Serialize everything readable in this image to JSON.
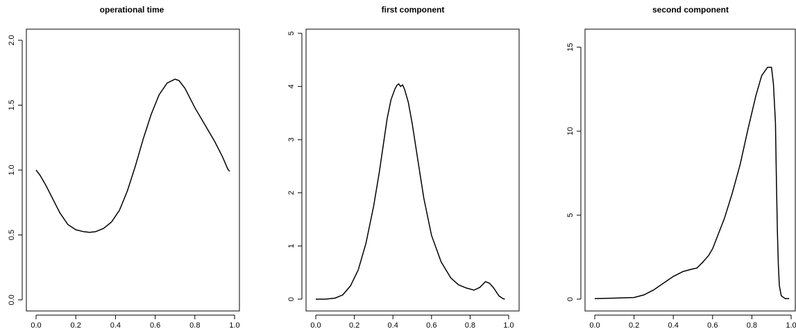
{
  "chart_data": [
    {
      "type": "line",
      "title": "operational time",
      "xlabel": "",
      "ylabel": "",
      "xlim": [
        0,
        1
      ],
      "ylim": [
        0,
        2
      ],
      "xticks": [
        "0.0",
        "0.2",
        "0.4",
        "0.6",
        "0.8",
        "1.0"
      ],
      "yticks": [
        "0.0",
        "0.5",
        "1.0",
        "1.5",
        "2.0"
      ],
      "grid": false,
      "series": [
        {
          "x": [
            0.0,
            0.02,
            0.05,
            0.08,
            0.12,
            0.16,
            0.2,
            0.24,
            0.27,
            0.3,
            0.34,
            0.38,
            0.42,
            0.46,
            0.5,
            0.54,
            0.58,
            0.62,
            0.66,
            0.7,
            0.72,
            0.75,
            0.8,
            0.85,
            0.9,
            0.94,
            0.965,
            0.975
          ],
          "y": [
            1.0,
            0.96,
            0.88,
            0.79,
            0.67,
            0.58,
            0.54,
            0.525,
            0.52,
            0.525,
            0.55,
            0.6,
            0.69,
            0.84,
            1.03,
            1.24,
            1.43,
            1.58,
            1.67,
            1.7,
            1.69,
            1.63,
            1.48,
            1.35,
            1.22,
            1.1,
            1.01,
            0.99
          ]
        }
      ]
    },
    {
      "type": "line",
      "title": "first component",
      "xlabel": "",
      "ylabel": "",
      "xlim": [
        0,
        1
      ],
      "ylim": [
        0,
        5
      ],
      "xticks": [
        "0.0",
        "0.2",
        "0.4",
        "0.6",
        "0.8",
        "1.0"
      ],
      "yticks": [
        "0",
        "1",
        "2",
        "3",
        "4",
        "5"
      ],
      "grid": false,
      "series": [
        {
          "x": [
            0.0,
            0.05,
            0.1,
            0.14,
            0.18,
            0.22,
            0.26,
            0.3,
            0.33,
            0.35,
            0.37,
            0.39,
            0.41,
            0.42,
            0.43,
            0.44,
            0.45,
            0.46,
            0.48,
            0.5,
            0.53,
            0.56,
            0.6,
            0.65,
            0.7,
            0.74,
            0.78,
            0.82,
            0.85,
            0.88,
            0.9,
            0.92,
            0.95,
            0.97,
            0.98
          ],
          "y": [
            0.0,
            0.0,
            0.02,
            0.08,
            0.25,
            0.55,
            1.05,
            1.75,
            2.4,
            2.9,
            3.4,
            3.75,
            3.95,
            4.02,
            4.05,
            4.0,
            4.03,
            3.95,
            3.7,
            3.3,
            2.6,
            1.9,
            1.2,
            0.7,
            0.4,
            0.27,
            0.21,
            0.17,
            0.22,
            0.33,
            0.3,
            0.22,
            0.06,
            0.01,
            0.0
          ]
        }
      ]
    },
    {
      "type": "line",
      "title": "second component",
      "xlabel": "",
      "ylabel": "",
      "xlim": [
        0,
        1
      ],
      "ylim": [
        0,
        15
      ],
      "xticks": [
        "0.0",
        "0.2",
        "0.4",
        "0.6",
        "0.8",
        "1.0"
      ],
      "yticks": [
        "0",
        "5",
        "10",
        "15"
      ],
      "grid": false,
      "series": [
        {
          "x": [
            0.0,
            0.1,
            0.2,
            0.25,
            0.3,
            0.35,
            0.4,
            0.45,
            0.5,
            0.52,
            0.55,
            0.58,
            0.6,
            0.63,
            0.66,
            0.7,
            0.74,
            0.78,
            0.82,
            0.85,
            0.88,
            0.9,
            0.91,
            0.92,
            0.925,
            0.93,
            0.935,
            0.94,
            0.95,
            0.97,
            0.99
          ],
          "y": [
            0.03,
            0.06,
            0.1,
            0.25,
            0.55,
            0.95,
            1.35,
            1.65,
            1.8,
            1.85,
            2.2,
            2.6,
            3.0,
            3.9,
            4.8,
            6.3,
            8.0,
            10.1,
            12.1,
            13.3,
            13.8,
            13.8,
            12.8,
            10.5,
            7.0,
            4.0,
            2.0,
            0.8,
            0.2,
            0.03,
            0.03
          ]
        }
      ]
    }
  ]
}
